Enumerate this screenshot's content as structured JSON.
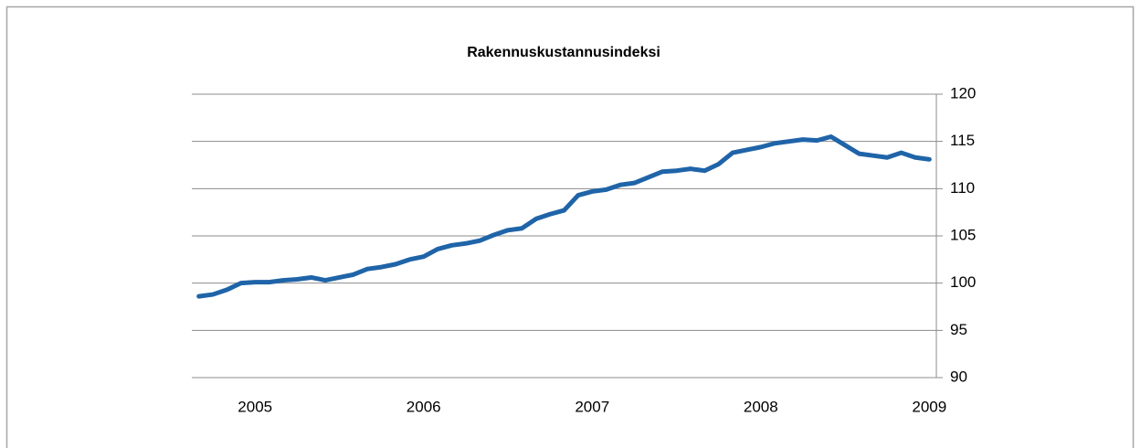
{
  "chart_data": {
    "type": "line",
    "title": "Rakennuskustannusindeksi",
    "categories": [
      null,
      null,
      null,
      null,
      "2005",
      null,
      null,
      null,
      null,
      null,
      null,
      null,
      null,
      null,
      null,
      null,
      "2006",
      null,
      null,
      null,
      null,
      null,
      null,
      null,
      null,
      null,
      null,
      null,
      "2007",
      null,
      null,
      null,
      null,
      null,
      null,
      null,
      null,
      null,
      null,
      null,
      "2008",
      null,
      null,
      null,
      null,
      null,
      null,
      null,
      null,
      null,
      null,
      null,
      "2009"
    ],
    "series": [
      {
        "name": "Rakennuskustannusindeksi",
        "color": "#1f64a8",
        "values": [
          98.6,
          98.8,
          99.3,
          100.0,
          100.1,
          100.1,
          100.3,
          100.4,
          100.6,
          100.3,
          100.6,
          100.9,
          101.5,
          101.7,
          102.0,
          102.5,
          102.8,
          103.6,
          104.0,
          104.2,
          104.5,
          105.1,
          105.6,
          105.8,
          106.8,
          107.3,
          107.7,
          109.3,
          109.7,
          109.9,
          110.4,
          110.6,
          111.2,
          111.8,
          111.9,
          112.1,
          111.9,
          112.6,
          113.8,
          114.1,
          114.4,
          114.8,
          115.0,
          115.2,
          115.1,
          115.5,
          114.6,
          113.7,
          113.5,
          113.3,
          113.8,
          113.3,
          113.1
        ]
      }
    ],
    "ylim": [
      90,
      120
    ],
    "yticks": [
      90,
      95,
      100,
      105,
      110,
      115,
      120
    ],
    "grid": true
  }
}
